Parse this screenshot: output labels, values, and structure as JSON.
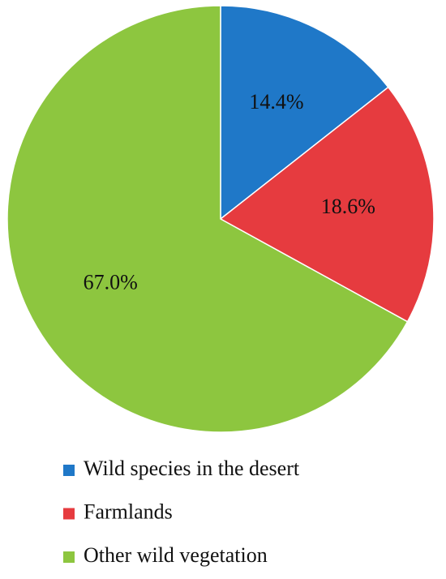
{
  "chart_data": {
    "type": "pie",
    "categories": [
      "Wild species in the desert",
      "Farmlands",
      "Other wild vegetation"
    ],
    "values": [
      14.4,
      18.6,
      67.0
    ],
    "value_labels": [
      "14.4%",
      "18.6%",
      "67.0%"
    ],
    "colors": [
      "#1f78c8",
      "#e63b3f",
      "#8dc63f"
    ],
    "legend": "bottom"
  }
}
